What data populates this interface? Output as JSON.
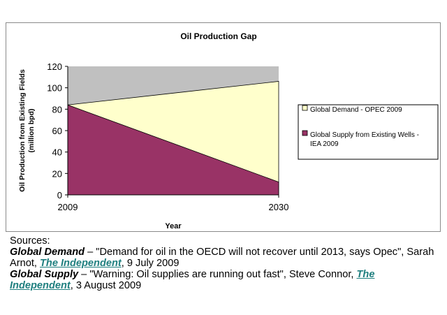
{
  "chart_data": {
    "type": "area",
    "title": "Oil Production Gap",
    "xlabel": "Year",
    "ylabel": "Oil Production from Existing Fields (million bpd)",
    "x": [
      2009,
      2030
    ],
    "x_tick_labels": [
      "2009",
      "2030"
    ],
    "ylim": [
      0,
      120
    ],
    "y_ticks": [
      0,
      20,
      40,
      60,
      80,
      100,
      120
    ],
    "grid": false,
    "plot_background": "#c0c0c0",
    "legend_position": "right",
    "series": [
      {
        "name": "Global Demand - OPEC 2009",
        "values": [
          84,
          106
        ],
        "color": "#ffffcc"
      },
      {
        "name": "Global Supply from Existing Wells - IEA 2009",
        "values": [
          84,
          12
        ],
        "color": "#993366"
      }
    ]
  },
  "sources": {
    "heading": "Sources:",
    "demand_label": "Global Demand",
    "demand_text_1": " – \"Demand for oil in the OECD will not recover until 2013, says Opec\", Sarah Arnot, ",
    "demand_link": "The Independent",
    "demand_text_2": ", 9 July 2009",
    "supply_label": "Global Supply",
    "supply_text_1": " – \"Warning: Oil supplies are running out fast\", Steve Connor, ",
    "supply_link": "The Independent",
    "supply_text_2": ", 3 August 2009"
  }
}
